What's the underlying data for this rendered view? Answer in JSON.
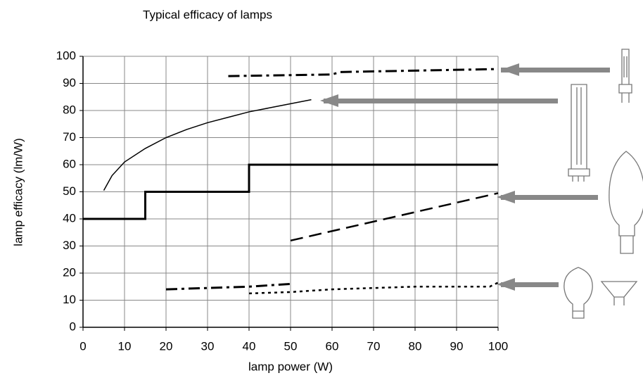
{
  "chart_data": {
    "type": "line",
    "title": "Typical efficacy of lamps",
    "x_label": "lamp power (W)",
    "y_label": "lamp efficacy (lm/W)",
    "xlim": [
      0,
      100
    ],
    "ylim": [
      0,
      100
    ],
    "xticks": [
      0,
      10,
      20,
      30,
      40,
      50,
      60,
      70,
      80,
      90,
      100
    ],
    "yticks": [
      0,
      10,
      20,
      30,
      40,
      50,
      60,
      70,
      80,
      90,
      100
    ],
    "grid": true,
    "series": [
      {
        "color": "#000000",
        "style": "dashdot",
        "width": 3,
        "x": [
          35,
          60,
          62,
          100
        ],
        "values": [
          92.7,
          93.3,
          94.2,
          95.3
        ]
      },
      {
        "color": "#000000",
        "style": "solid",
        "width": 1.5,
        "x": [
          5,
          7,
          10,
          15,
          20,
          25,
          30,
          35,
          40,
          45,
          50,
          55
        ],
        "values": [
          50.5,
          56,
          61,
          66,
          70,
          73,
          75.5,
          77.5,
          79.5,
          81,
          82.5,
          84
        ]
      },
      {
        "color": "#000000",
        "style": "solid",
        "width": 3,
        "x": [
          0,
          15,
          15,
          40,
          40,
          100
        ],
        "values": [
          40,
          40,
          50,
          50,
          60,
          60
        ]
      },
      {
        "color": "#000000",
        "style": "dash",
        "width": 2.5,
        "x": [
          50,
          100
        ],
        "values": [
          32,
          49.5
        ]
      },
      {
        "color": "#000000",
        "style": "dashdot",
        "width": 3,
        "x": [
          20,
          40,
          50
        ],
        "values": [
          14,
          15,
          16
        ]
      },
      {
        "color": "#000000",
        "style": "dot",
        "width": 2.5,
        "x": [
          40,
          50,
          60,
          70,
          80,
          90,
          98,
          100
        ],
        "values": [
          12.5,
          13,
          14,
          14.5,
          15,
          15,
          15,
          16.5
        ]
      }
    ]
  }
}
